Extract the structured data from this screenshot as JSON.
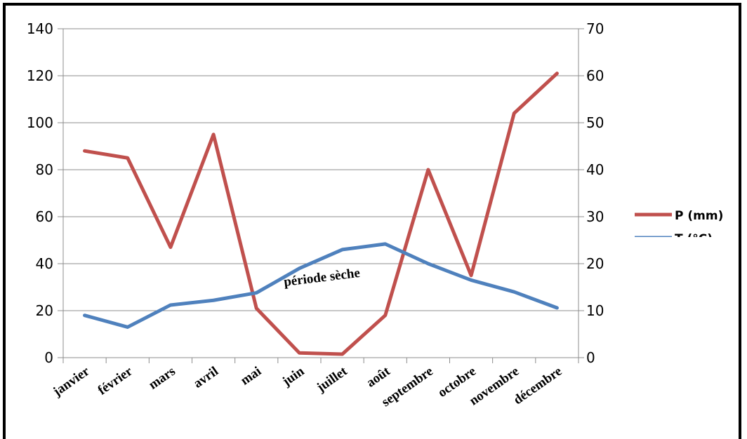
{
  "chart_data": {
    "type": "line",
    "categories": [
      "janvier",
      "février",
      "mars",
      "avril",
      "mai",
      "juin",
      "juillet",
      "août",
      "septembre",
      "octobre",
      "novembre",
      "décembre"
    ],
    "series": [
      {
        "name": "P (mm)",
        "axis": "left",
        "color": "#c0504d",
        "values": [
          88,
          85,
          47,
          95,
          21,
          2,
          1.5,
          18,
          80,
          35,
          104,
          121
        ]
      },
      {
        "name": "T (°C)",
        "axis": "right",
        "color": "#4f81bd",
        "values": [
          9,
          6.5,
          11.2,
          12.2,
          13.8,
          19,
          23,
          24.2,
          20,
          16.5,
          14,
          10.6
        ]
      }
    ],
    "y_left": {
      "min": 0,
      "max": 140,
      "ticks": [
        0,
        20,
        40,
        60,
        80,
        100,
        120,
        140
      ]
    },
    "y_right": {
      "min": 0,
      "max": 70,
      "ticks": [
        0,
        10,
        20,
        30,
        40,
        50,
        60,
        70
      ]
    },
    "grid": true,
    "legend_position": "right",
    "annotation": "période sèche",
    "xlabel": "",
    "ylabel": ""
  }
}
